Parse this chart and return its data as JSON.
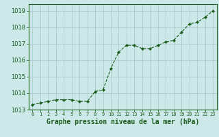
{
  "x": [
    0,
    1,
    2,
    3,
    4,
    5,
    6,
    7,
    8,
    9,
    10,
    11,
    12,
    13,
    14,
    15,
    16,
    17,
    18,
    19,
    20,
    21,
    22,
    23
  ],
  "y": [
    1013.3,
    1013.4,
    1013.5,
    1013.6,
    1013.6,
    1013.6,
    1013.5,
    1013.5,
    1014.1,
    1014.2,
    1015.5,
    1016.5,
    1016.9,
    1016.9,
    1016.7,
    1016.7,
    1016.9,
    1017.1,
    1017.2,
    1017.7,
    1018.2,
    1018.3,
    1018.6,
    1019.0
  ],
  "line_color": "#1a5c1a",
  "marker": "D",
  "marker_size": 2.2,
  "bg_color": "#cce8e8",
  "grid_color": "#aacccc",
  "title": "Graphe pression niveau de la mer (hPa)",
  "title_fontsize": 7,
  "title_color": "#1a5c1a",
  "tick_color": "#1a5c1a",
  "ylim": [
    1013.0,
    1019.4
  ],
  "yticks": [
    1013,
    1014,
    1015,
    1016,
    1017,
    1018,
    1019
  ],
  "ytick_fontsize": 6,
  "xlim": [
    -0.5,
    23.5
  ],
  "xtick_labels": [
    "0",
    "1",
    "2",
    "3",
    "4",
    "5",
    "6",
    "7",
    "8",
    "9",
    "10",
    "11",
    "12",
    "13",
    "14",
    "15",
    "16",
    "17",
    "18",
    "19",
    "20",
    "21",
    "22",
    "23"
  ],
  "xtick_fontsize": 5
}
